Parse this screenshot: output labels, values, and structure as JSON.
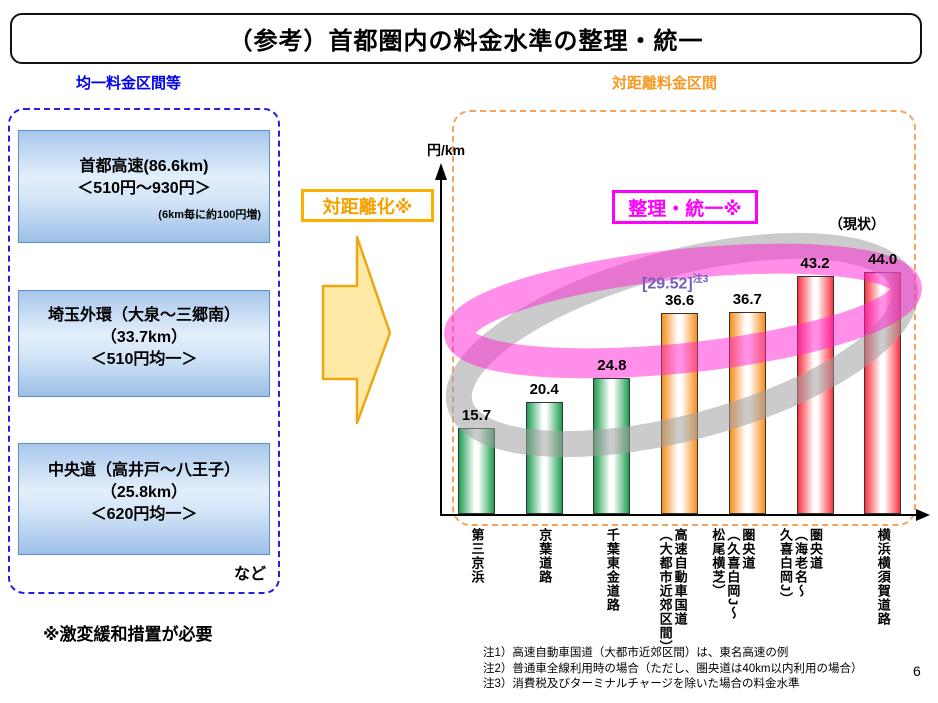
{
  "title": "（参考）首都圏内の料金水準の整理・統一",
  "page_number": "6",
  "left_panel": {
    "header": "均一料金区間等",
    "boxes": [
      {
        "line1": "首都高速(86.6km)",
        "line2": "＜510円～930円＞",
        "note": "(6km毎に約100円増)"
      },
      {
        "line1": "埼玉外環（大泉～三郷南）",
        "line2": "（33.7km）",
        "line3": "＜510円均一＞"
      },
      {
        "line1": "中央道（高井戸～八王子）",
        "line2": "（25.8km）",
        "line3": "＜620円均一＞"
      }
    ],
    "etc_label": "など",
    "caution": "※激変緩和措置が必要"
  },
  "transition_arrow": {
    "label": "対距離化※"
  },
  "right_panel": {
    "header": "対距離料金区間",
    "unify_label": "整理・統一※",
    "current_label": "（現状）",
    "yaxis_label": "円/km"
  },
  "chart_data": {
    "type": "bar",
    "ylabel": "円/km",
    "categories": [
      "第三京浜",
      "京葉道路",
      "千葉東金道路",
      "高速自動車国道\n（大都市近郊区間）",
      "圏央道\n（久喜白岡J～\n松尾横芝）",
      "圏央道\n（海老名～\n久喜白岡J）",
      "横浜横須賀道路"
    ],
    "values": [
      15.7,
      20.4,
      24.8,
      36.6,
      36.7,
      43.2,
      44.0
    ],
    "bar_colors": [
      "green",
      "green",
      "green",
      "orange",
      "orange",
      "red",
      "red"
    ],
    "annotation": {
      "text": "[29.52]",
      "superscript": "注3"
    },
    "grid": false,
    "legend": "none"
  },
  "colors": {
    "header_left_blue": "#0000ee",
    "header_right_orange": "#f59a23",
    "magenta_accent": "#ff00ff",
    "arrow_amber": "#ffae00",
    "bar_green": "#1f9e50",
    "bar_orange": "#f78e1e",
    "bar_red": "#f8353f",
    "ellipse_gray": "#a0a0a0",
    "ellipse_magenta": "#ff1fd1"
  },
  "notes": [
    "注1）高速自動車国道（大都市近郊区間）は、東名高速の例",
    "注2）普通車全線利用時の場合（ただし、圏央道は40km以内利用の場合）",
    "注3）消費税及びターミナルチャージを除いた場合の料金水準"
  ]
}
